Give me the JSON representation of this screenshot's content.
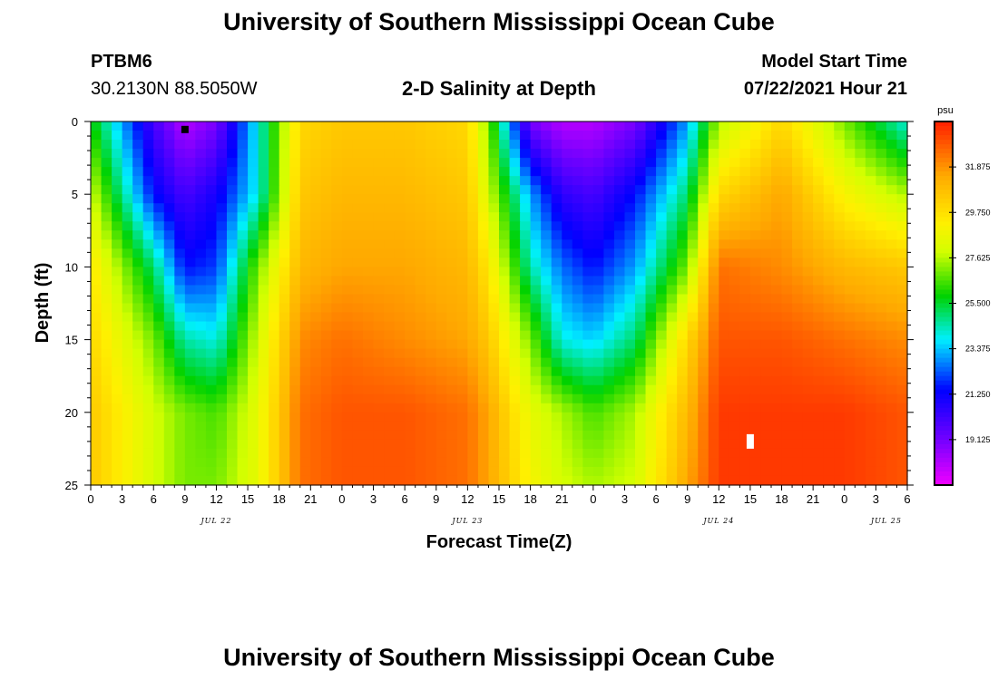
{
  "page": {
    "top_title": "University of Southern Mississippi Ocean Cube",
    "bottom_title": "University of Southern Mississippi Ocean Cube",
    "station_id": "PTBM6",
    "station_coords": "30.2130N  88.5050W",
    "plot_title": "2-D Salinity at Depth",
    "model_start_label": "Model Start Time",
    "model_start_value": "07/22/2021 Hour 21"
  },
  "chart_data": {
    "type": "heatmap",
    "title": "2-D Salinity at Depth",
    "xlabel": "Forecast Time(Z)",
    "ylabel": "Depth (ft)",
    "x_range_hours": [
      0,
      78
    ],
    "x_start_day": "JUL 22",
    "x_tick_hours": [
      0,
      3,
      6,
      9,
      12,
      15,
      18,
      21,
      24,
      27,
      30,
      33,
      36,
      39,
      42,
      45,
      48,
      51,
      54,
      57,
      60,
      63,
      66,
      69,
      72,
      75,
      78
    ],
    "x_tick_labels": [
      "0",
      "3",
      "6",
      "9",
      "12",
      "15",
      "18",
      "21",
      "0",
      "3",
      "6",
      "9",
      "12",
      "15",
      "18",
      "21",
      "0",
      "3",
      "6",
      "9",
      "12",
      "15",
      "18",
      "21",
      "0",
      "3",
      "6"
    ],
    "date_labels": [
      {
        "label": "JUL 22",
        "hour": 12
      },
      {
        "label": "JUL 23",
        "hour": 36
      },
      {
        "label": "JUL 24",
        "hour": 60
      },
      {
        "label": "JUL 25",
        "hour": 76
      }
    ],
    "y_range_ft": [
      0,
      25
    ],
    "y_inverted": true,
    "y_tick_values": [
      0,
      5,
      10,
      15,
      20,
      25
    ],
    "y_tick_labels": [
      "0",
      "5",
      "10",
      "15",
      "20",
      "25"
    ],
    "colorbar": {
      "unit": "psu",
      "range": [
        17.0,
        34.0
      ],
      "tick_values": [
        19.125,
        21.25,
        23.375,
        25.5,
        27.625,
        29.75,
        31.875
      ],
      "tick_labels": [
        "19.125",
        "21.250",
        "23.375",
        "25.500",
        "27.625",
        "29.750",
        "31.875"
      ]
    },
    "grid": {
      "times_h": [
        0,
        6,
        9,
        12,
        16,
        20,
        24,
        30,
        36,
        38,
        42,
        45,
        48,
        52,
        57,
        60,
        66,
        72,
        78
      ],
      "depths_ft": [
        0,
        5,
        10,
        15,
        20,
        25
      ],
      "salinity_psu": [
        [
          26.0,
          20.0,
          18.0,
          19.0,
          24.0,
          30.0,
          30.5,
          30.5,
          30.0,
          27.0,
          19.0,
          18.0,
          18.0,
          19.0,
          23.0,
          27.5,
          30.0,
          27.0,
          24.0
        ],
        [
          28.0,
          21.5,
          20.0,
          21.0,
          24.0,
          30.5,
          31.0,
          31.0,
          30.5,
          28.0,
          23.0,
          20.5,
          20.0,
          21.5,
          25.0,
          30.0,
          31.5,
          29.0,
          27.5
        ],
        [
          29.5,
          25.0,
          21.5,
          22.0,
          27.0,
          31.0,
          31.5,
          31.5,
          31.0,
          29.5,
          24.5,
          22.5,
          21.5,
          23.0,
          27.0,
          32.5,
          32.0,
          31.0,
          30.5
        ],
        [
          30.0,
          27.0,
          24.5,
          24.0,
          28.0,
          32.0,
          32.5,
          32.0,
          31.5,
          30.5,
          27.0,
          24.0,
          23.5,
          25.0,
          30.0,
          33.0,
          33.0,
          32.5,
          32.0
        ],
        [
          30.5,
          28.0,
          27.0,
          26.5,
          28.5,
          32.5,
          33.0,
          33.0,
          32.5,
          31.5,
          28.5,
          27.5,
          26.5,
          27.5,
          31.0,
          33.5,
          33.5,
          33.5,
          33.0
        ],
        [
          30.5,
          28.0,
          27.0,
          27.0,
          28.5,
          32.5,
          33.0,
          33.0,
          32.5,
          31.5,
          29.0,
          28.0,
          27.5,
          28.0,
          31.5,
          33.5,
          33.5,
          33.5,
          33.0
        ]
      ]
    },
    "markers": [
      {
        "name": "black-marker",
        "hour": 9,
        "depth_ft": 0.3,
        "color": "#000000"
      },
      {
        "name": "white-marker",
        "hour": 63,
        "depth_ft": 22,
        "color": "#ffffff"
      }
    ]
  }
}
